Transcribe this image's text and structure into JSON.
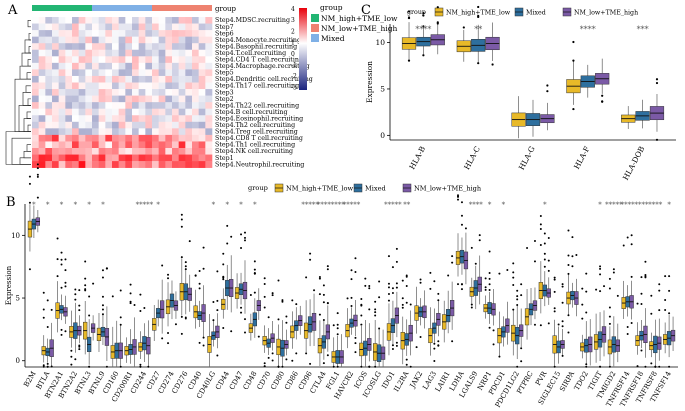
{
  "panels": {
    "a": "A",
    "b": "B",
    "c": "C"
  },
  "colors": {
    "nm_high": "#e8b928",
    "mixed": "#2e6f9e",
    "nm_low": "#7b5aa6",
    "bar_green": "#22b573",
    "bar_blue": "#7fb0e6",
    "bar_red": "#ee8270",
    "heat_high": "#e8000b",
    "heat_mid": "#ffffff",
    "heat_low": "#1a237e"
  },
  "heatmap": {
    "group_label": "group",
    "legend_title": "group",
    "legend_items": [
      "NM_high+TME_low",
      "NM_low+TME_high",
      "Mixed"
    ],
    "color_scale_ticks": [
      "4",
      "3",
      "2",
      "1",
      "0",
      "-1",
      "-2",
      "-3"
    ],
    "rows": [
      "Step4.MDSC.recruiting",
      "Step7",
      "Step6",
      "Step4.Monocyte.recruiting",
      "Step4.Basophil.recruiting",
      "Step4.T.cell.recruiting",
      "Step4.CD4 T cell.recruiting",
      "Step4.Macrophage.recruiting",
      "Step5",
      "Step4.Dendritic cell.recruiting",
      "Step4.Th17 cell.recruiting",
      "Step3",
      "Step2",
      "Step4.Th22 cell.recruiting",
      "Step4.B cell.recruiting",
      "Step4.Eosinophil.recruiting",
      "Step4.Th2 cell.recruiting",
      "Step4.Treg cell.recruiting",
      "Step4.CD8 T cell.recruiting",
      "Step4.Th1 cell.recruiting",
      "Step4.NK cell.recruiting",
      "Step1",
      "Step4.Neutrophil.recruiting"
    ]
  },
  "chart_data": [
    {
      "type": "boxplot",
      "panel": "B",
      "legend_title": "group",
      "series": [
        "NM_high+TME_low",
        "Mixed",
        "NM_low+TME_high"
      ],
      "ylabel": "Expression",
      "ylim": [
        -0.5,
        12.5
      ],
      "yticks": [
        0,
        5,
        10
      ],
      "categories": [
        "B2M",
        "BTLA",
        "BTN2A1",
        "BTN2A2",
        "BTNL3",
        "BTNL9",
        "CD160",
        "CD200R1",
        "CD244",
        "CD27",
        "CD274",
        "CD276",
        "CD40",
        "CD40LG",
        "CD44",
        "CD47",
        "CD48",
        "CD70",
        "CD80",
        "CD86",
        "CD96",
        "CTLA4",
        "FGL1",
        "HAVCR2",
        "ICOS",
        "ICOSLG",
        "IDO1",
        "IL2RA",
        "JAK2",
        "LAG3",
        "LAIR1",
        "LDHA",
        "LGALS9",
        "NRP1",
        "PDCD1",
        "PDCD1LG2",
        "PTPRC",
        "PVR",
        "SIGLEC15",
        "SIRPA",
        "TDO2",
        "TIGIT",
        "TMIGD2",
        "TNFRSF14",
        "TNFRSF18",
        "TNFRSF8",
        "TNFSF14"
      ],
      "significance": [
        "*",
        "*",
        "*",
        "*",
        "*",
        "*",
        "",
        "",
        "*****",
        "*",
        "",
        "",
        "",
        "*",
        "*",
        "*",
        "*",
        "",
        "",
        "",
        "*****",
        "****",
        "****",
        "*****",
        "",
        "",
        "*****",
        "**",
        "",
        "",
        "",
        "",
        "****",
        "*",
        "*",
        "",
        "",
        "*",
        "",
        "",
        "",
        "*",
        "*****",
        "****",
        "****",
        "****",
        "*"
      ],
      "medians": [
        [
          10.5,
          10.9,
          11.1
        ],
        [
          0.8,
          0.7,
          1.0
        ],
        [
          4.0,
          4.1,
          3.9
        ],
        [
          2.3,
          2.4,
          2.4
        ],
        [
          2.4,
          1.3,
          2.6
        ],
        [
          2.1,
          2.3,
          1.9
        ],
        [
          0.7,
          0.8,
          0.8
        ],
        [
          0.8,
          0.9,
          1.1
        ],
        [
          1.1,
          1.4,
          1.2
        ],
        [
          2.9,
          3.8,
          4.1
        ],
        [
          4.3,
          4.8,
          4.4
        ],
        [
          5.5,
          5.5,
          5.3
        ],
        [
          3.9,
          3.6,
          3.8
        ],
        [
          1.3,
          2.0,
          2.3
        ],
        [
          4.5,
          5.8,
          5.8
        ],
        [
          5.4,
          5.7,
          5.6
        ],
        [
          2.6,
          3.3,
          4.4
        ],
        [
          1.6,
          1.4,
          1.8
        ],
        [
          1.1,
          1.0,
          1.3
        ],
        [
          2.3,
          2.8,
          3.2
        ],
        [
          2.4,
          2.9,
          3.1
        ],
        [
          1.2,
          1.5,
          2.3
        ],
        [
          0.3,
          0.3,
          0.3
        ],
        [
          2.4,
          3.0,
          3.2
        ],
        [
          0.9,
          1.0,
          1.3
        ],
        [
          0.7,
          0.6,
          0.6
        ],
        [
          2.3,
          2.8,
          3.6
        ],
        [
          1.6,
          1.7,
          2.2
        ],
        [
          3.8,
          3.9,
          3.9
        ],
        [
          2.0,
          2.6,
          3.3
        ],
        [
          3.1,
          3.6,
          4.2
        ],
        [
          8.2,
          8.3,
          8.0
        ],
        [
          5.5,
          5.8,
          6.1
        ],
        [
          4.2,
          4.2,
          4.1
        ],
        [
          2.0,
          2.3,
          2.8
        ],
        [
          2.2,
          2.0,
          2.4
        ],
        [
          3.5,
          4.1,
          4.4
        ],
        [
          5.6,
          5.6,
          5.4
        ],
        [
          1.3,
          1.1,
          1.3
        ],
        [
          5.0,
          5.2,
          5.0
        ],
        [
          1.1,
          1.2,
          1.3
        ],
        [
          1.5,
          1.7,
          2.1
        ],
        [
          1.1,
          1.3,
          1.2
        ],
        [
          4.6,
          4.7,
          4.7
        ],
        [
          1.6,
          2.0,
          2.1
        ],
        [
          1.2,
          1.3,
          1.4
        ],
        [
          1.7,
          1.8,
          2.0
        ]
      ]
    },
    {
      "type": "boxplot",
      "panel": "C",
      "legend_title": "group",
      "series": [
        "NM_high+TME_low",
        "Mixed",
        "NM_low+TME_high"
      ],
      "ylabel": "Expression",
      "ylim": [
        -0.5,
        12
      ],
      "yticks": [
        0,
        5,
        10
      ],
      "categories": [
        "HLA-B",
        "HLA-C",
        "HLA-G",
        "HLA-F",
        "HLA-DOB"
      ],
      "significance": [
        "****",
        "**",
        "",
        "****",
        "***"
      ],
      "medians": [
        [
          9.9,
          10.1,
          10.3
        ],
        [
          9.6,
          9.7,
          9.9
        ],
        [
          1.7,
          1.7,
          1.8
        ],
        [
          5.3,
          5.8,
          6.1
        ],
        [
          1.8,
          2.1,
          2.4
        ]
      ]
    }
  ]
}
